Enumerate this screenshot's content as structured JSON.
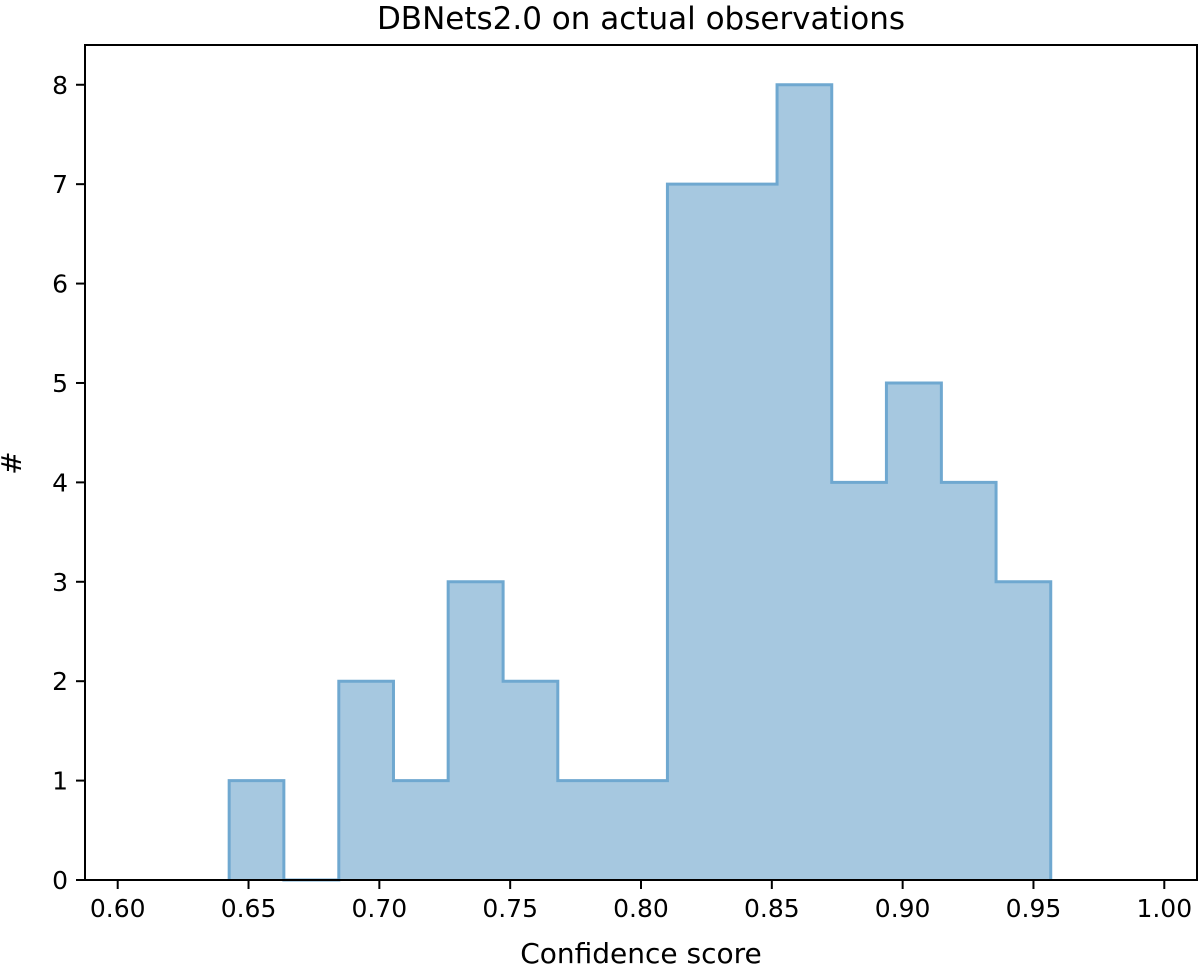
{
  "chart_data": {
    "type": "bar",
    "title": "DBNets2.0 on actual observations",
    "xlabel": "Confidence score",
    "ylabel": "#",
    "xlim": [
      0.5875,
      1.0125
    ],
    "ylim": [
      0,
      8.4
    ],
    "x_ticks": [
      "0.60",
      "0.65",
      "0.70",
      "0.75",
      "0.80",
      "0.85",
      "0.90",
      "0.95",
      "1.00"
    ],
    "y_ticks": [
      "0",
      "1",
      "2",
      "3",
      "4",
      "5",
      "6",
      "7",
      "8"
    ],
    "grid": false,
    "legend": "none",
    "bar_color": "#a6c8e0",
    "edge_color": "#6fa8d0",
    "bins": [
      {
        "start": 0.6426,
        "end": 0.6635,
        "count": 1
      },
      {
        "start": 0.6635,
        "end": 0.6845,
        "count": 0
      },
      {
        "start": 0.6845,
        "end": 0.7054,
        "count": 2
      },
      {
        "start": 0.7054,
        "end": 0.7263,
        "count": 1
      },
      {
        "start": 0.7263,
        "end": 0.7473,
        "count": 3
      },
      {
        "start": 0.7473,
        "end": 0.7682,
        "count": 2
      },
      {
        "start": 0.7682,
        "end": 0.7891,
        "count": 1
      },
      {
        "start": 0.7891,
        "end": 0.8101,
        "count": 1
      },
      {
        "start": 0.8101,
        "end": 0.831,
        "count": 7
      },
      {
        "start": 0.831,
        "end": 0.852,
        "count": 7
      },
      {
        "start": 0.852,
        "end": 0.8729,
        "count": 8
      },
      {
        "start": 0.8729,
        "end": 0.8938,
        "count": 4
      },
      {
        "start": 0.8938,
        "end": 0.9148,
        "count": 5
      },
      {
        "start": 0.9148,
        "end": 0.9357,
        "count": 4
      },
      {
        "start": 0.9357,
        "end": 0.9566,
        "count": 3
      }
    ]
  }
}
